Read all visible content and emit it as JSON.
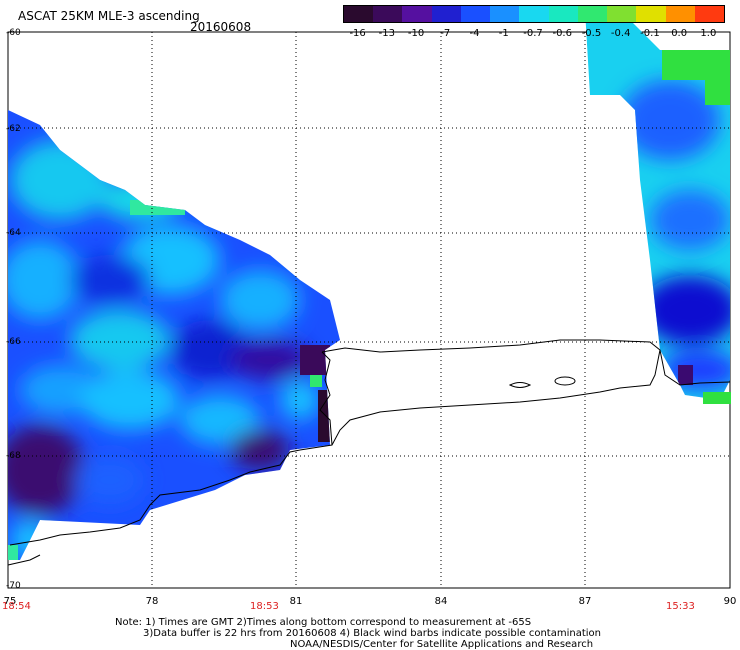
{
  "header": {
    "title": "ASCAT 25KM MLE-3 ascending",
    "date": "20160608"
  },
  "colorbar": {
    "labels": [
      "-16",
      "-13",
      "-10",
      "-7",
      "-4",
      "-1",
      "-0.7",
      "-0.6",
      "-0.5",
      "-0.4",
      "-0.1",
      "0.0",
      "1.0"
    ],
    "colors": [
      "#2a0a2e",
      "#3b0a5a",
      "#5510a0",
      "#2020d0",
      "#1a50ff",
      "#1a90ff",
      "#19d8f0",
      "#19e8c0",
      "#30e870",
      "#80e030",
      "#e0e000",
      "#ff9000",
      "#ff3a10"
    ]
  },
  "axes": {
    "x_ticks": [
      "75",
      "78",
      "81",
      "84",
      "87",
      "90"
    ],
    "y_ticks": [
      "-60",
      "-62",
      "-64",
      "-66",
      "-68",
      "-70"
    ]
  },
  "times": {
    "left": "18:54",
    "middle": "18:53",
    "right": "15:33"
  },
  "notes": {
    "line1": "Note: 1) Times are GMT 2)Times along bottom correspond to measurement at -65S",
    "line2": "3)Data buffer is 22 hrs from 20160608 4) Black wind barbs indicate possible contamination",
    "line3": "NOAA/NESDIS/Center for Satellite Applications and Research"
  }
}
